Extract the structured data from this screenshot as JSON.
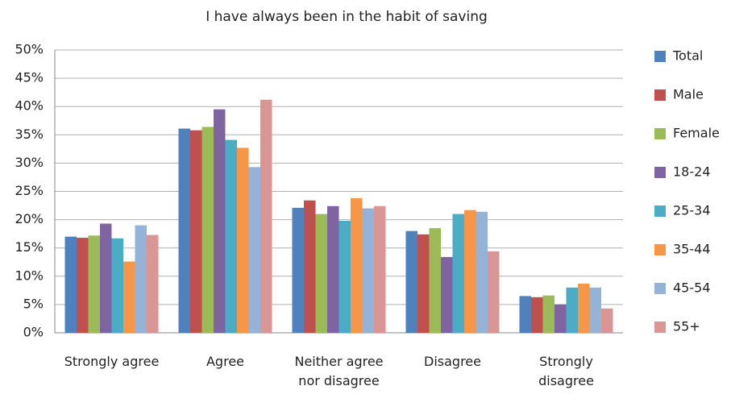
{
  "chart_data": {
    "type": "bar",
    "title": "I have always been in the habit of saving",
    "categories": [
      "Strongly agree",
      "Agree",
      "Neither agree nor disagree",
      "Disagree",
      "Strongly disagree"
    ],
    "series": [
      {
        "name": "Total",
        "color": "#4f81bd",
        "values": [
          17,
          36.1,
          22.1,
          18,
          6.5
        ]
      },
      {
        "name": "Male",
        "color": "#c0504d",
        "values": [
          16.8,
          35.8,
          23.4,
          17.4,
          6.3
        ]
      },
      {
        "name": "Female",
        "color": "#9bbb59",
        "values": [
          17.2,
          36.4,
          21,
          18.5,
          6.6
        ]
      },
      {
        "name": "18-24",
        "color": "#8064a2",
        "values": [
          19.3,
          39.5,
          22.4,
          13.4,
          5
        ]
      },
      {
        "name": "25-34",
        "color": "#4bacc6",
        "values": [
          16.7,
          34.1,
          19.8,
          21,
          8
        ]
      },
      {
        "name": "35-44",
        "color": "#f79646",
        "values": [
          12.6,
          32.7,
          23.8,
          21.7,
          8.7
        ]
      },
      {
        "name": "45-54",
        "color": "#95b3d7",
        "values": [
          19,
          29.3,
          22,
          21.4,
          8
        ]
      },
      {
        "name": "55+",
        "color": "#d99694",
        "values": [
          17.3,
          41.2,
          22.4,
          14.4,
          4.3
        ]
      }
    ],
    "ylim": [
      0,
      50
    ],
    "yticks": [
      {
        "value": 0,
        "label": "0%"
      },
      {
        "value": 5,
        "label": "5%"
      },
      {
        "value": 10,
        "label": "10%"
      },
      {
        "value": 15,
        "label": "15%"
      },
      {
        "value": 20,
        "label": "20%"
      },
      {
        "value": 25,
        "label": "25%"
      },
      {
        "value": 30,
        "label": "30%"
      },
      {
        "value": 35,
        "label": "35%"
      },
      {
        "value": 40,
        "label": "40%"
      },
      {
        "value": 45,
        "label": "45%"
      },
      {
        "value": 50,
        "label": "50%"
      }
    ],
    "grid": true,
    "legend": "right"
  }
}
